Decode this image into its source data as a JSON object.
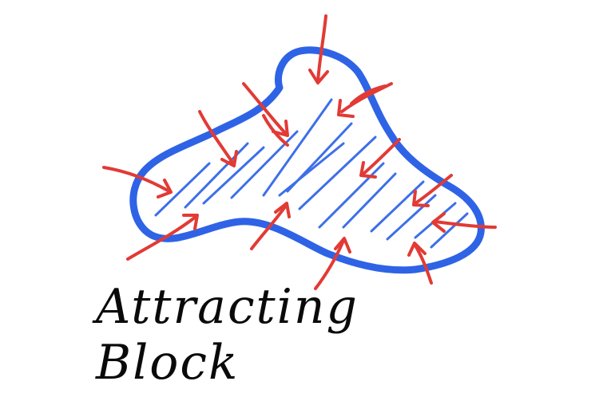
{
  "caption": "Attracting Block",
  "colors": {
    "outline": "#2f63e6",
    "hatch": "#3d6fe8",
    "arrows": "#e23a35",
    "ink": "#0a0a0a",
    "background": "#ffffff"
  },
  "arrow_count": 14,
  "hatch_line_count": 14
}
